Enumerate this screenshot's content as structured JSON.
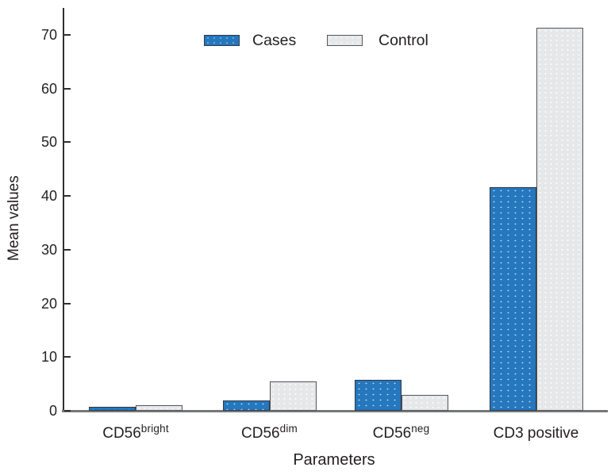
{
  "chart_data": {
    "type": "bar",
    "title": "",
    "xlabel": "Parameters",
    "ylabel": "Mean values",
    "categories": [
      {
        "base": "CD56",
        "sup": "bright"
      },
      {
        "base": "CD56",
        "sup": "dim"
      },
      {
        "base": "CD56",
        "sup": "neg"
      },
      {
        "base": "CD3 positive",
        "sup": ""
      }
    ],
    "series": [
      {
        "name": "Cases",
        "color": "#2577be",
        "border_color": "#2e3a45",
        "values": [
          0.7,
          1.9,
          5.8,
          41.6
        ]
      },
      {
        "name": "Control",
        "color": "#e6e7e8",
        "border_color": "#55565a",
        "values": [
          1.0,
          5.5,
          2.9,
          71.3
        ]
      }
    ],
    "yticks": [
      0,
      10,
      20,
      30,
      40,
      50,
      60,
      70
    ],
    "ylim": [
      0,
      75
    ],
    "grid": false,
    "legend_position": "top-center",
    "background_color": "#ffffff",
    "axis_color": "#2f2f31"
  }
}
